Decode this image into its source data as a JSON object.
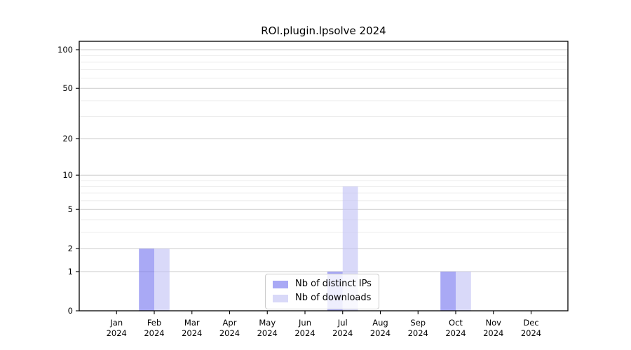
{
  "chart_data": {
    "type": "bar",
    "title": "ROI.plugin.lpsolve 2024",
    "categories": [
      "Jan",
      "Feb",
      "Mar",
      "Apr",
      "May",
      "Jun",
      "Jul",
      "Aug",
      "Sep",
      "Oct",
      "Nov",
      "Dec"
    ],
    "category_year_label": "2024",
    "series": [
      {
        "name": "Nb of distinct IPs",
        "values": [
          0,
          2,
          0,
          0,
          0,
          0,
          1,
          0,
          0,
          1,
          0,
          0
        ],
        "legend_color": "#a9a9f5",
        "bar_fill": "rgba(116,116,239,0.62)"
      },
      {
        "name": "Nb of downloads",
        "values": [
          0,
          2,
          0,
          0,
          0,
          0,
          8,
          0,
          0,
          1,
          0,
          0
        ],
        "legend_color": "#d9d9f8",
        "bar_fill": "rgba(194,194,245,0.62)"
      }
    ],
    "xlabel": "",
    "ylabel": "",
    "y_axis": {
      "scale": "log1p",
      "tick_labels": [
        100,
        50,
        20,
        10,
        5,
        2,
        1,
        0
      ],
      "minor_ticks": [
        3,
        4,
        6,
        7,
        8,
        9,
        30,
        40,
        60,
        70,
        80,
        90
      ],
      "ylim": [
        0,
        116
      ]
    },
    "grid": true,
    "legend_position": "bottom-center",
    "colors": {
      "axis": "#000000",
      "grid_major": "#cbcbcb",
      "grid_minor": "#ededed",
      "background": "#ffffff"
    }
  }
}
